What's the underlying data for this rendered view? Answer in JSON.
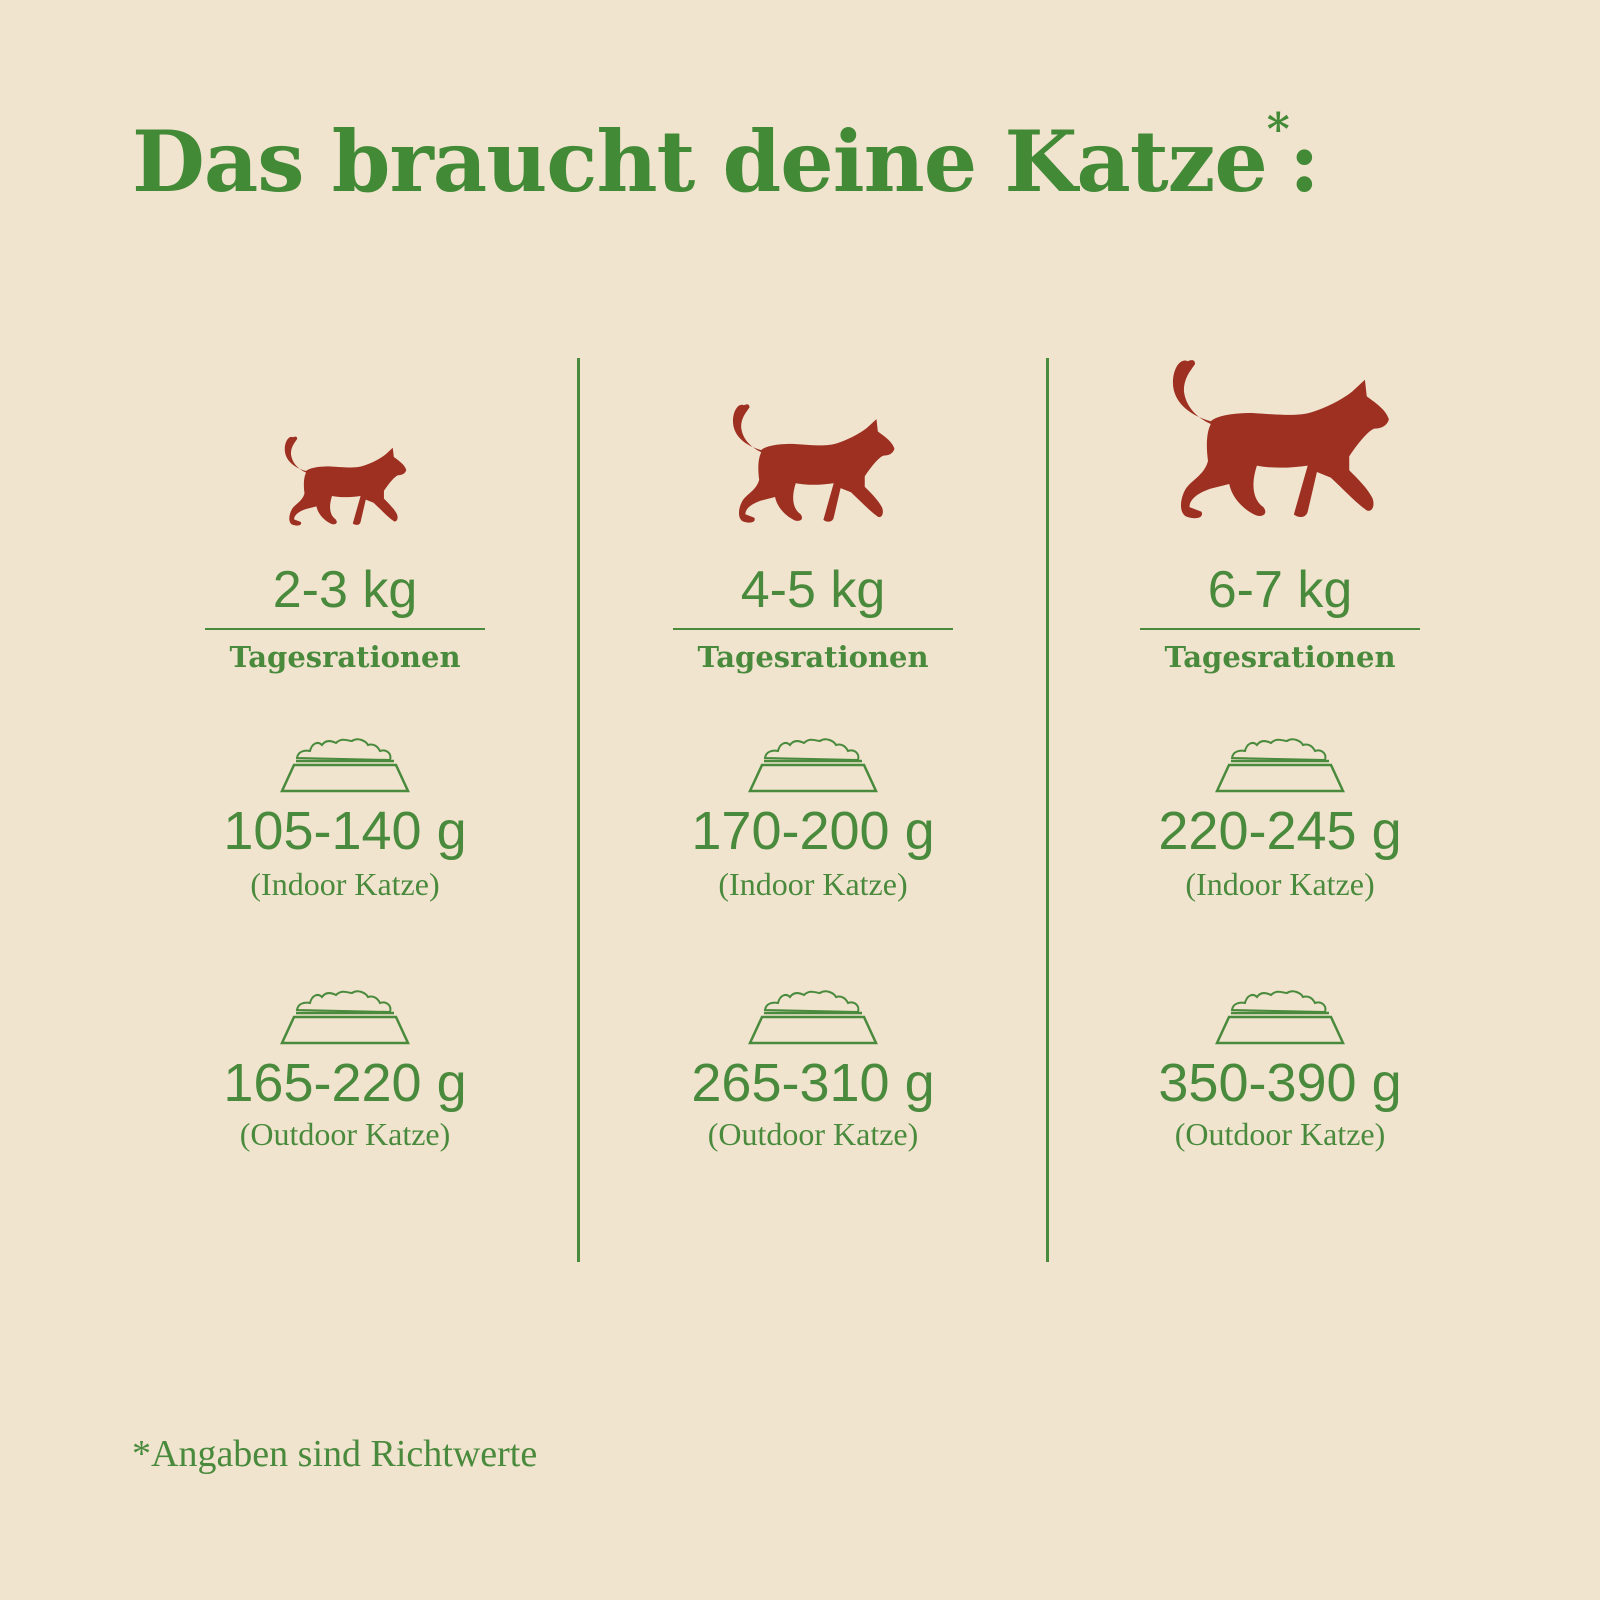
{
  "title": "Das braucht deine Katze",
  "title_mark": "*",
  "title_end": ":",
  "colors": {
    "background": "#f0e4cf",
    "green": "#4a8a3c",
    "cat": "#9e3022"
  },
  "icons": {
    "cat": "cat-silhouette-icon",
    "bowl": "food-bowl-icon"
  },
  "columns": [
    {
      "weight": "2-3 kg",
      "heading": "Tagesrationen",
      "indoor": {
        "amount": "105-140 g",
        "label": "(Indoor Katze)"
      },
      "outdoor": {
        "amount": "165-220 g",
        "label": "(Outdoor Katze)"
      }
    },
    {
      "weight": "4-5 kg",
      "heading": "Tagesrationen",
      "indoor": {
        "amount": "170-200 g",
        "label": "(Indoor Katze)"
      },
      "outdoor": {
        "amount": "265-310 g",
        "label": "(Outdoor Katze)"
      }
    },
    {
      "weight": "6-7 kg",
      "heading": "Tagesrationen",
      "indoor": {
        "amount": "220-245 g",
        "label": "(Indoor Katze)"
      },
      "outdoor": {
        "amount": "350-390 g",
        "label": "(Outdoor Katze)"
      }
    }
  ],
  "footnote": "*Angaben sind Richtwerte"
}
